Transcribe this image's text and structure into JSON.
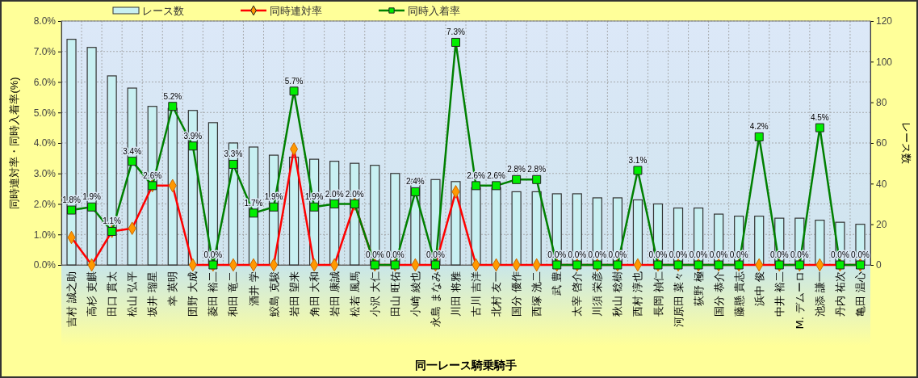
{
  "chart_data": {
    "type": "bar",
    "xlabel": "同一レース騎乗騎手",
    "ylabel": "同時連対率・同時入着率(%)",
    "y2label": "レース数",
    "categories": [
      "吉村 誠之助",
      "高杉 吏麒",
      "田口 貫太",
      "松山 弘平",
      "坂井 瑠星",
      "幸 英明",
      "団野 大成",
      "菱田 裕二",
      "和田 竜二",
      "酒井 学",
      "鮫島 克駿",
      "岩田 望来",
      "角田 大和",
      "岩田 康誠",
      "松若 風馬",
      "小沢 大仁",
      "田山 旺佑",
      "小崎 綾也",
      "永島 まなみ",
      "川田 将雅",
      "古川 吉洋",
      "北村 友一",
      "国分 優作",
      "西塚 洸二",
      "武 豊",
      "太宰 啓介",
      "川須 栄彦",
      "秋山 稔樹",
      "西村 淳也",
      "長岡 禎仁",
      "河原田 菜々",
      "荻野 極",
      "国分 恭介",
      "藤懸 貴志",
      "浜中 俊",
      "中井 裕二",
      "M. デムーロ",
      "池添 謙一",
      "丹内 祐次",
      "亀田 温心"
    ],
    "series": [
      {
        "name": "レース数",
        "axis": "y2",
        "color": "#c8f0f2",
        "values": [
          111,
          107,
          93,
          87,
          78,
          77,
          76,
          70,
          60,
          58,
          54,
          53,
          52,
          51,
          50,
          49,
          45,
          42,
          42,
          41,
          38,
          38,
          36,
          36,
          35,
          35,
          33,
          33,
          32,
          30,
          28,
          28,
          25,
          24,
          24,
          23,
          23,
          22,
          21,
          20
        ]
      },
      {
        "name": "同時連対率",
        "type": "line",
        "color": "#ff0000",
        "marker": "diamond",
        "values": [
          0.9,
          0,
          1.1,
          1.2,
          2.6,
          2.6,
          0,
          0,
          0,
          0,
          0,
          3.8,
          0,
          0,
          2.0,
          0,
          0,
          0,
          0,
          2.4,
          0,
          0,
          0,
          0,
          0,
          0,
          0,
          0,
          0,
          0,
          0,
          0,
          0,
          0,
          0,
          0,
          0,
          0,
          0,
          0
        ]
      },
      {
        "name": "同時入着率",
        "type": "line",
        "color": "#008000",
        "marker": "square",
        "values": [
          1.8,
          1.9,
          1.1,
          3.4,
          2.6,
          5.2,
          3.9,
          0,
          3.3,
          1.7,
          1.9,
          5.7,
          1.9,
          2.0,
          2.0,
          0,
          0,
          2.4,
          0,
          7.3,
          2.6,
          2.6,
          2.8,
          2.8,
          0,
          0,
          0,
          0,
          3.1,
          0,
          0,
          0,
          0,
          0,
          4.2,
          0,
          0,
          4.5,
          0,
          0
        ],
        "value_labels": [
          "1.8%",
          "1.9%",
          "1.1%",
          "3.4%",
          "2.6%",
          "5.2%",
          "3.9%",
          "0.0%",
          "3.3%",
          "1.7%",
          "1.9%",
          "5.7%",
          "1.9%",
          "2.0%",
          "2.0%",
          "0.0%",
          "0.0%",
          "2.4%",
          "0.0%",
          "7.3%",
          "2.6%",
          "2.6%",
          "2.8%",
          "2.8%",
          "0.0%",
          "0.0%",
          "0.0%",
          "0.0%",
          "3.1%",
          "0.0%",
          "0.0%",
          "0.0%",
          "0.0%",
          "0.0%",
          "4.2%",
          "0.0%",
          "0.0%",
          "4.5%",
          "0.0%",
          "0.0%"
        ]
      }
    ],
    "ylim": [
      0,
      8
    ],
    "yticks": [
      {
        "value": 0,
        "label": "0.0%"
      },
      {
        "value": 1,
        "label": "1.0%"
      },
      {
        "value": 2,
        "label": "2.0%"
      },
      {
        "value": 3,
        "label": "3.0%"
      },
      {
        "value": 4,
        "label": "4.0%"
      },
      {
        "value": 5,
        "label": "5.0%"
      },
      {
        "value": 6,
        "label": "6.0%"
      },
      {
        "value": 7,
        "label": "7.0%"
      },
      {
        "value": 8,
        "label": "8.0%"
      }
    ],
    "y2lim": [
      0,
      120
    ],
    "y2ticks": [
      0,
      20,
      40,
      60,
      80,
      100,
      120
    ],
    "grid": true,
    "legend": "top"
  }
}
